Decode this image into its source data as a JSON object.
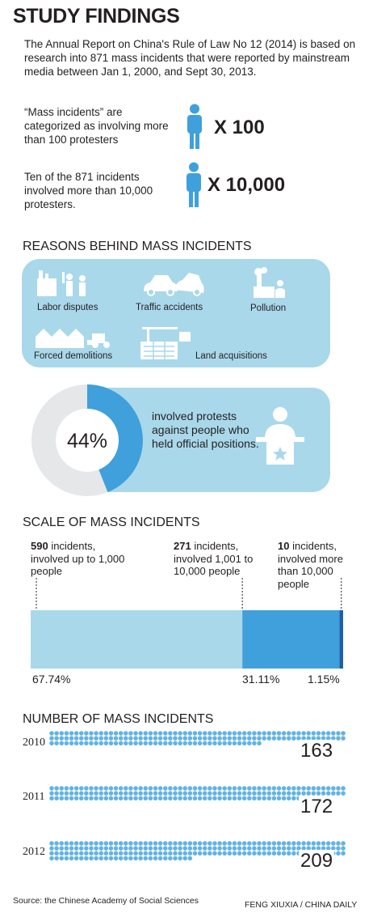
{
  "title": "STUDY FINDINGS",
  "intro": "The Annual Report on China's Rule of Law No 12 (2014) is based on research into 871 mass incidents that were reported by mainstream media between Jan 1, 2000, and Sept 30, 2013.",
  "stats": [
    {
      "text": "“Mass incidents” are categorized as involving more than 100 protesters",
      "multiplier": "X 100"
    },
    {
      "text": "Ten of the 871 incidents involved more than 10,000 protesters.",
      "multiplier": "X 10,000"
    }
  ],
  "reasons": {
    "heading": "REASONS BEHIND MASS INCIDENTS",
    "items": [
      "Labor disputes",
      "Traffic accidents",
      "Pollution",
      "Forced demolitions",
      "Land acquisitions"
    ]
  },
  "officials": {
    "percent_label": "44%",
    "text": "involved protests against people who held official positions."
  },
  "scale": {
    "heading": "SCALE OF MASS INCIDENTS",
    "groups": [
      {
        "count": "590",
        "rest": " incidents, involved up to 1,000 people",
        "pct_label": "67.74%"
      },
      {
        "count": "271",
        "rest": " incidents, involved 1,001 to 10,000 people",
        "pct_label": "31.11%"
      },
      {
        "count": "10",
        "rest": " incidents, involved more than 10,000 people",
        "pct_label": "1.15%"
      }
    ]
  },
  "number": {
    "heading": "NUMBER OF MASS INCIDENTS",
    "years": [
      {
        "year": "2010",
        "value": "163"
      },
      {
        "year": "2011",
        "value": "172"
      },
      {
        "year": "2012",
        "value": "209"
      }
    ]
  },
  "footer": {
    "source": "Source: the Chinese Academy of Social Sciences",
    "credit": "FENG XIUXIA / CHINA DAILY"
  },
  "colors": {
    "light_blue": "#a9d8ea",
    "mid_blue": "#3fa0db",
    "dark_blue": "#1f5fa8",
    "grey": "#e6e7e8",
    "dot_blue": "#62b3e3"
  },
  "chart_data": [
    {
      "type": "pie",
      "title": "",
      "categories": [
        "involved protests against people who held official positions",
        "other"
      ],
      "values": [
        44,
        56
      ]
    },
    {
      "type": "bar",
      "title": "SCALE OF MASS INCIDENTS",
      "categories": [
        "up to 1,000 people",
        "1,001 to 10,000 people",
        "more than 10,000 people"
      ],
      "values": [
        67.74,
        31.11,
        1.15
      ],
      "counts": [
        590,
        271,
        10
      ],
      "stacked": true
    },
    {
      "type": "bar",
      "title": "NUMBER OF MASS INCIDENTS",
      "categories": [
        "2010",
        "2011",
        "2012"
      ],
      "values": [
        163,
        172,
        209
      ]
    }
  ]
}
